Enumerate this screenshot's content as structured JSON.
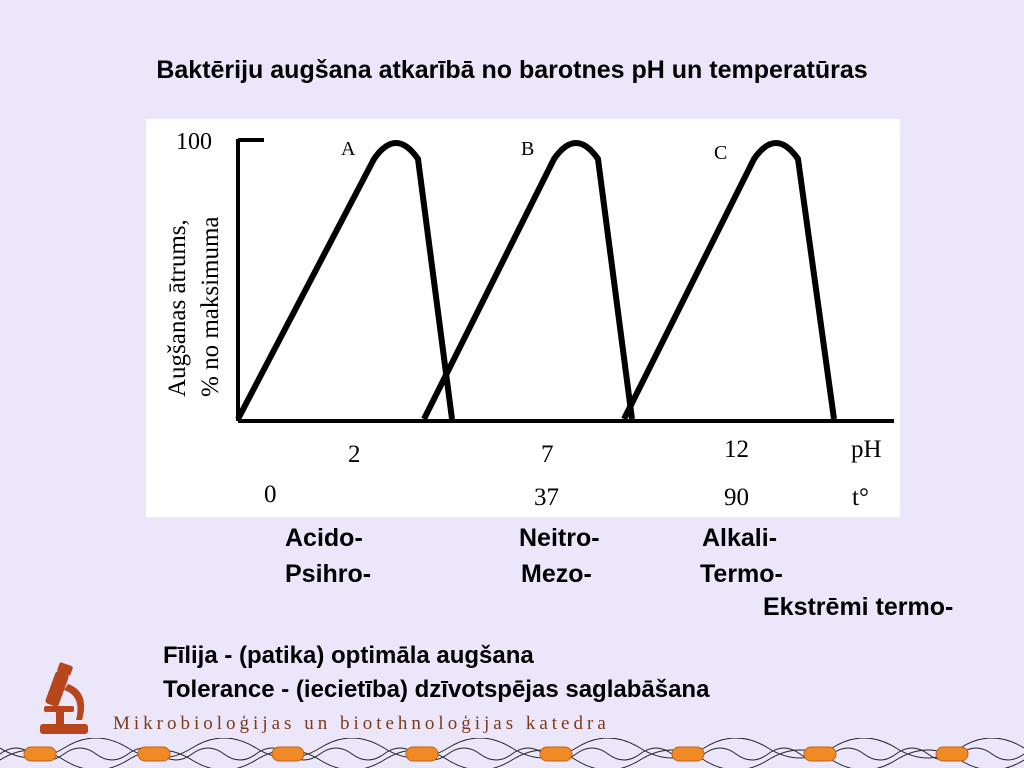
{
  "title": "Baktēriju augšana atkarībā no barotnes pH un temperatūras",
  "chart_data": {
    "type": "line",
    "ylabel_line1": "Augšanas ātrums,",
    "ylabel_line2": "% no maksimuma",
    "y_tick": "100",
    "x_ph_ticks": [
      "2",
      "7",
      "12"
    ],
    "x_ph_label": "pH",
    "x_temp_ticks": [
      "0",
      "37",
      "90"
    ],
    "x_temp_label": "t°",
    "curves": [
      {
        "name": "A",
        "peak_at_ph": 2
      },
      {
        "name": "B",
        "peak_at_ph": 7
      },
      {
        "name": "C",
        "peak_at_ph": 12
      }
    ],
    "ylim": [
      0,
      100
    ]
  },
  "categories": {
    "acido": "Acido-",
    "psihro": "Psihro-",
    "neitro": "Neitro-",
    "mezo": "Mezo-",
    "alkali": "Alkali-",
    "termo": "Termo-",
    "ekstremi": "Ekstrēmi termo-"
  },
  "definitions": {
    "filija": "Fīlija - (patika) optimāla augšana",
    "tolerance": "Tolerance - (iecietība) dzīvotspējas saglabāšana"
  },
  "footer": {
    "department": "Mikrobioloģijas un biotehnoloģijas katedra",
    "logo_icon": "microscope-icon",
    "border_color": "#f08a24"
  }
}
